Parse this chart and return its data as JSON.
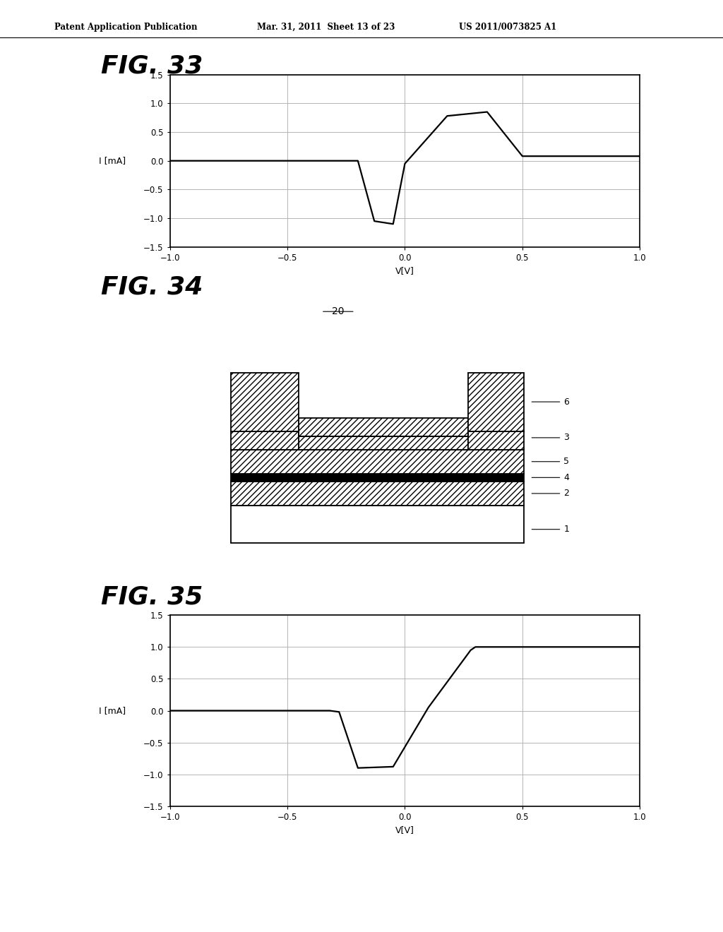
{
  "fig_width": 10.24,
  "fig_height": 13.2,
  "bg_color": "#ffffff",
  "header_text": "Patent Application Publication",
  "header_date": "Mar. 31, 2011  Sheet 13 of 23",
  "header_patent": "US 2011/0073825 A1",
  "fig33_title": "FIG. 33",
  "fig34_title": "FIG. 34",
  "fig35_title": "FIG. 35",
  "xlabel": "V[V]",
  "ylabel": "I [mA]",
  "xlim": [
    -1,
    1
  ],
  "ylim": [
    -1.5,
    1.5
  ],
  "xticks": [
    -1,
    -0.5,
    0,
    0.5,
    1
  ],
  "yticks": [
    -1.5,
    -1,
    -0.5,
    0,
    0.5,
    1,
    1.5
  ],
  "fig33_x": [
    -1.0,
    -0.2,
    -0.13,
    -0.05,
    0.0,
    0.18,
    0.35,
    0.5,
    0.55,
    1.0
  ],
  "fig33_y": [
    0.0,
    0.0,
    -1.05,
    -1.1,
    -0.05,
    0.78,
    0.85,
    0.08,
    0.08,
    0.08
  ],
  "fig35_x": [
    -1.0,
    -0.32,
    -0.28,
    -0.2,
    -0.05,
    0.1,
    0.28,
    0.3,
    1.0
  ],
  "fig35_y": [
    0.0,
    0.0,
    -0.02,
    -0.9,
    -0.88,
    0.05,
    0.95,
    1.0,
    1.0
  ]
}
